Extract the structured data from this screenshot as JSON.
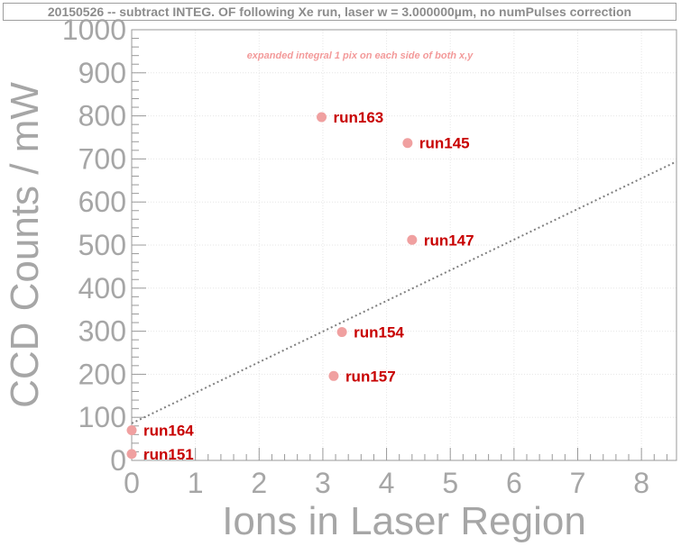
{
  "chart_data": {
    "type": "scatter",
    "title": "20150526 -- subtract INTEG. OF following Xe run, laser w = 3.000000µm, no numPulses correction",
    "xlabel": "Ions in Laser Region",
    "ylabel": "CCD Counts / mW",
    "xlim": [
      0,
      8.55
    ],
    "ylim": [
      0,
      1000
    ],
    "x_ticks": [
      "0",
      "1",
      "2",
      "3",
      "4",
      "5",
      "6",
      "7",
      "8"
    ],
    "y_ticks": [
      "0",
      "100",
      "200",
      "300",
      "400",
      "500",
      "600",
      "700",
      "800",
      "900",
      "1000"
    ],
    "annotation": "expanded integral 1 pix on each side of both x,y",
    "points": [
      {
        "label": "run163",
        "x": 2.98,
        "y": 797
      },
      {
        "label": "run145",
        "x": 4.33,
        "y": 737
      },
      {
        "label": "run147",
        "x": 4.4,
        "y": 512
      },
      {
        "label": "run154",
        "x": 3.3,
        "y": 298
      },
      {
        "label": "run157",
        "x": 3.17,
        "y": 196
      },
      {
        "label": "run164",
        "x": 0.0,
        "y": 70
      },
      {
        "label": "run151",
        "x": 0.0,
        "y": 15
      }
    ],
    "fit_line": {
      "x": [
        0,
        8.55
      ],
      "y": [
        86,
        694
      ]
    },
    "grid": true,
    "colors": {
      "points": "#f0a0a0",
      "labels": "#c80000",
      "fit": "#808080",
      "axis": "#a6a6a6"
    }
  }
}
